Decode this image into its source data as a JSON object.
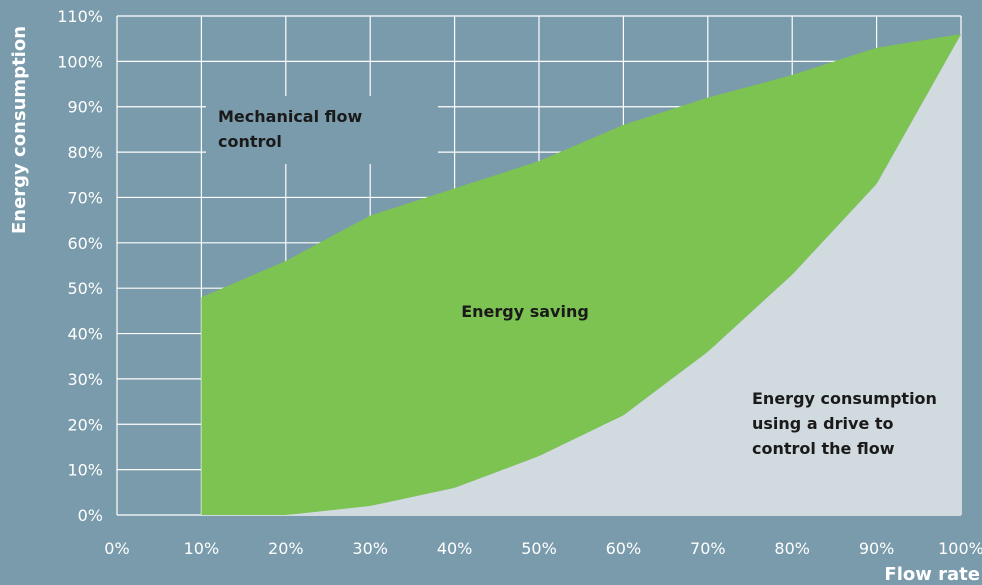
{
  "colors": {
    "background": "#7a9bab",
    "grid": "#ffffff",
    "saving_fill": "#7dc352",
    "drive_fill": "#d1dadf",
    "text_light": "#ffffff",
    "text_dark": "#1a1a1a"
  },
  "chart_data": {
    "type": "area",
    "title": "",
    "xlabel": "Flow rate",
    "ylabel": "Energy consumption",
    "xlim": [
      0,
      100
    ],
    "ylim": [
      0,
      110
    ],
    "grid": true,
    "x_ticks": [
      "0%",
      "10%",
      "20%",
      "30%",
      "40%",
      "50%",
      "60%",
      "70%",
      "80%",
      "90%",
      "100%"
    ],
    "y_ticks": [
      "0%",
      "10%",
      "20%",
      "30%",
      "40%",
      "50%",
      "60%",
      "70%",
      "80%",
      "90%",
      "100%",
      "110%"
    ],
    "series": [
      {
        "name": "Mechanical flow control",
        "x": [
          10,
          20,
          30,
          40,
          50,
          60,
          70,
          80,
          90,
          100
        ],
        "y": [
          48,
          56,
          66,
          72,
          78,
          86,
          92,
          97,
          103,
          106
        ]
      },
      {
        "name": "Energy consumption using a drive to control the flow",
        "x": [
          0,
          20,
          30,
          40,
          50,
          60,
          70,
          80,
          90,
          100
        ],
        "y": [
          0,
          0,
          2,
          6,
          13,
          22,
          36,
          53,
          73,
          106
        ]
      }
    ],
    "annotations": [
      {
        "label": "Mechanical flow control",
        "lines": [
          "Mechanical flow",
          "control"
        ]
      },
      {
        "label": "Energy saving",
        "lines": [
          "Energy saving"
        ]
      },
      {
        "label": "Energy consumption using a drive to control the flow",
        "lines": [
          "Energy consumption",
          "using a drive to",
          "control the flow"
        ]
      }
    ]
  }
}
